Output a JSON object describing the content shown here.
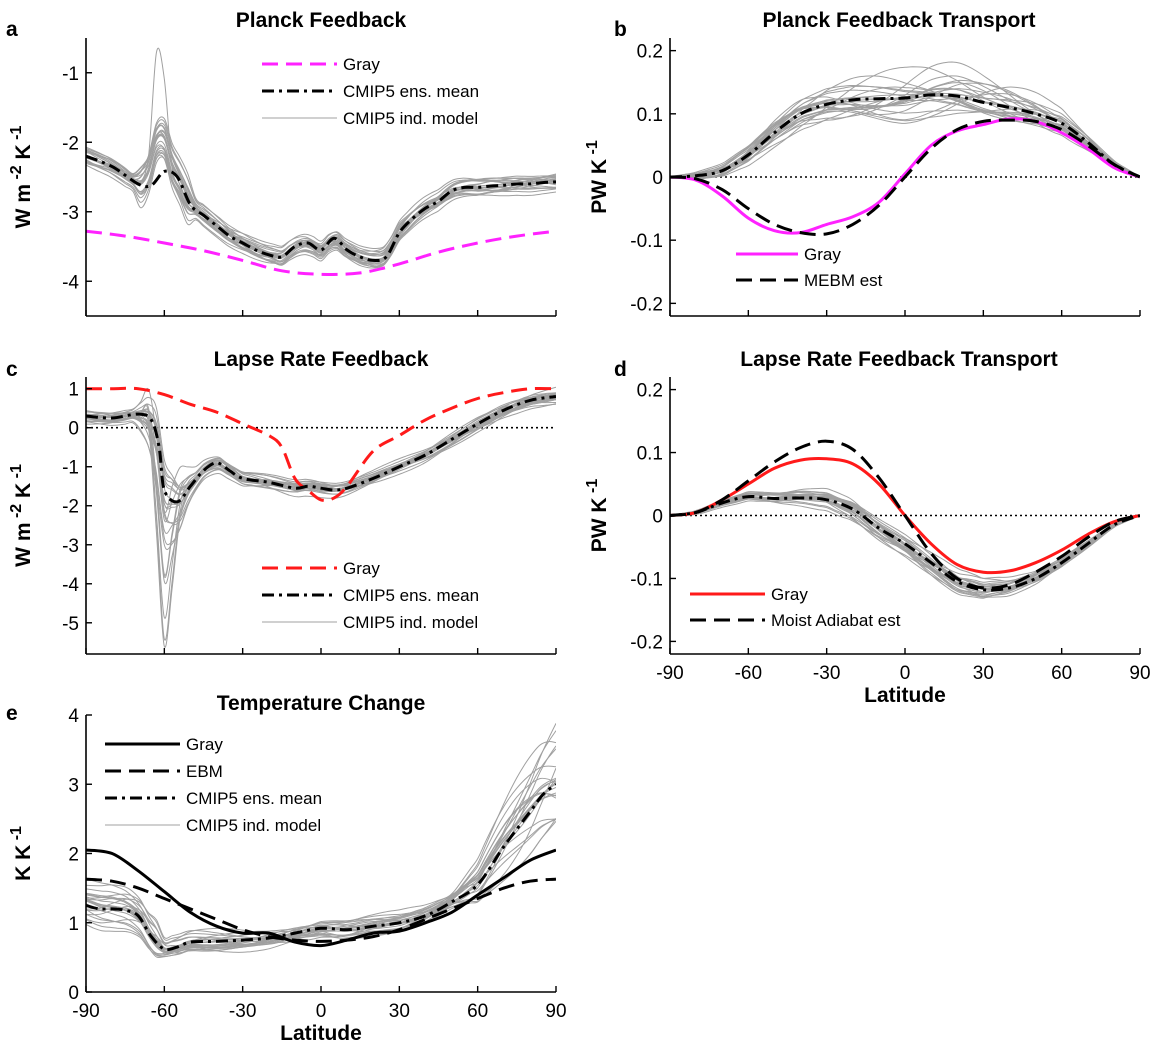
{
  "figure": {
    "x_ticks": [
      "-90",
      "-60",
      "-30",
      "0",
      "30",
      "60",
      "90"
    ],
    "x_label": "Latitude"
  },
  "chart_data": [
    {
      "panel": "a",
      "type": "line",
      "title": "Planck Feedback",
      "ylabel": "W m -2 K -1",
      "xlim": [
        -90,
        90
      ],
      "ylim": [
        -4.5,
        -0.5
      ],
      "yticks": [
        -4,
        -3,
        -2,
        -1
      ],
      "xlabel": "",
      "grid": false,
      "legend_position": "top-right",
      "legend": [
        "Gray",
        "CMIP5 ens. mean",
        "CMIP5 ind. model"
      ],
      "series": [
        {
          "name": "Gray",
          "color": "#ff22ff",
          "style": "dashed",
          "x": [
            -90,
            -75,
            -60,
            -45,
            -30,
            -15,
            0,
            15,
            30,
            45,
            60,
            75,
            90
          ],
          "y": [
            -3.28,
            -3.35,
            -3.45,
            -3.56,
            -3.7,
            -3.85,
            -3.9,
            -3.88,
            -3.75,
            -3.58,
            -3.45,
            -3.35,
            -3.28
          ]
        },
        {
          "name": "CMIP5 ens. mean",
          "color": "#000000",
          "style": "dashdot",
          "x": [
            -90,
            -80,
            -70,
            -65,
            -60,
            -55,
            -50,
            -45,
            -40,
            -35,
            -30,
            -25,
            -20,
            -15,
            -10,
            -5,
            0,
            5,
            10,
            15,
            20,
            25,
            30,
            35,
            40,
            45,
            50,
            55,
            60,
            65,
            70,
            75,
            80,
            85,
            90
          ],
          "y": [
            -2.2,
            -2.35,
            -2.6,
            -2.62,
            -2.42,
            -2.5,
            -2.9,
            -3.05,
            -3.2,
            -3.35,
            -3.45,
            -3.55,
            -3.62,
            -3.65,
            -3.5,
            -3.45,
            -3.55,
            -3.38,
            -3.55,
            -3.65,
            -3.7,
            -3.65,
            -3.3,
            -3.1,
            -2.95,
            -2.85,
            -2.7,
            -2.65,
            -2.65,
            -2.63,
            -2.62,
            -2.6,
            -2.6,
            -2.58,
            -2.57
          ]
        }
      ]
    },
    {
      "panel": "b",
      "type": "line",
      "title": "Planck Feedback Transport",
      "ylabel": "PW K -1",
      "xlim": [
        -90,
        90
      ],
      "ylim": [
        -0.22,
        0.22
      ],
      "yticks": [
        -0.2,
        -0.1,
        0,
        0.1,
        0.2
      ],
      "xlabel": "",
      "grid": false,
      "legend_position": "bottom-right",
      "legend": [
        "Gray",
        "MEBM est"
      ],
      "series": [
        {
          "name": "Gray",
          "color": "#ff22ff",
          "style": "solid",
          "x": [
            -90,
            -80,
            -70,
            -60,
            -50,
            -40,
            -30,
            -20,
            -10,
            0,
            10,
            20,
            30,
            40,
            50,
            60,
            70,
            80,
            90
          ],
          "y": [
            0,
            -0.005,
            -0.03,
            -0.065,
            -0.085,
            -0.088,
            -0.075,
            -0.063,
            -0.04,
            0.005,
            0.05,
            0.073,
            0.083,
            0.092,
            0.088,
            0.07,
            0.045,
            0.015,
            0
          ]
        },
        {
          "name": "MEBM est",
          "color": "#000000",
          "style": "dashed",
          "x": [
            -90,
            -80,
            -70,
            -60,
            -50,
            -40,
            -30,
            -20,
            -10,
            0,
            10,
            20,
            30,
            40,
            50,
            60,
            70,
            80,
            90
          ],
          "y": [
            0,
            -0.003,
            -0.02,
            -0.05,
            -0.075,
            -0.088,
            -0.09,
            -0.075,
            -0.045,
            0.0,
            0.045,
            0.075,
            0.088,
            0.09,
            0.088,
            0.075,
            0.05,
            0.02,
            0
          ]
        },
        {
          "name": "CMIP5 ens. mean",
          "color": "#000000",
          "style": "dashdot",
          "x": [
            -90,
            -80,
            -70,
            -60,
            -50,
            -40,
            -30,
            -20,
            -10,
            0,
            10,
            20,
            30,
            40,
            50,
            60,
            70,
            80,
            90
          ],
          "y": [
            0,
            0.002,
            0.01,
            0.035,
            0.07,
            0.1,
            0.115,
            0.122,
            0.124,
            0.125,
            0.13,
            0.128,
            0.118,
            0.11,
            0.1,
            0.085,
            0.055,
            0.02,
            0
          ]
        }
      ]
    },
    {
      "panel": "c",
      "type": "line",
      "title": "Lapse Rate Feedback",
      "ylabel": "W m -2 K -1",
      "xlim": [
        -90,
        90
      ],
      "ylim": [
        -5.8,
        1.3
      ],
      "yticks": [
        -5,
        -4,
        -3,
        -2,
        -1,
        0,
        1
      ],
      "xlabel": "",
      "grid": false,
      "legend_position": "bottom-right",
      "legend": [
        "Gray",
        "CMIP5 ens. mean",
        "CMIP5 ind. model"
      ],
      "series": [
        {
          "name": "Gray",
          "color": "#ff1a1a",
          "style": "dashed",
          "x": [
            -90,
            -80,
            -70,
            -60,
            -50,
            -40,
            -30,
            -20,
            -15,
            -10,
            -5,
            0,
            5,
            10,
            20,
            30,
            40,
            50,
            60,
            70,
            80,
            90
          ],
          "y": [
            1,
            1,
            1,
            0.85,
            0.6,
            0.4,
            0.1,
            -0.2,
            -0.5,
            -1.3,
            -1.6,
            -1.85,
            -1.8,
            -1.5,
            -0.6,
            -0.2,
            0.2,
            0.5,
            0.75,
            0.9,
            1,
            1
          ]
        },
        {
          "name": "CMIP5 ens. mean",
          "color": "#000000",
          "style": "dashdot",
          "x": [
            -90,
            -80,
            -70,
            -65,
            -62,
            -60,
            -55,
            -50,
            -45,
            -40,
            -35,
            -30,
            -20,
            -10,
            -5,
            0,
            5,
            10,
            20,
            30,
            40,
            50,
            60,
            70,
            80,
            90
          ],
          "y": [
            0.3,
            0.25,
            0.35,
            0.2,
            -0.5,
            -1.6,
            -1.9,
            -1.5,
            -1.1,
            -0.9,
            -1.1,
            -1.3,
            -1.4,
            -1.55,
            -1.5,
            -1.55,
            -1.6,
            -1.55,
            -1.3,
            -1.0,
            -0.7,
            -0.3,
            0.1,
            0.45,
            0.7,
            0.8
          ]
        }
      ]
    },
    {
      "panel": "d",
      "type": "line",
      "title": "Lapse Rate Feedback Transport",
      "ylabel": "PW K -1",
      "xlim": [
        -90,
        90
      ],
      "ylim": [
        -0.22,
        0.22
      ],
      "yticks": [
        -0.2,
        -0.1,
        0,
        0.1,
        0.2
      ],
      "xlabel": "Latitude",
      "grid": false,
      "legend_position": "bottom-left",
      "legend": [
        "Gray",
        "Moist Adiabat est"
      ],
      "series": [
        {
          "name": "Gray",
          "color": "#ff1a1a",
          "style": "solid",
          "x": [
            -90,
            -80,
            -70,
            -60,
            -50,
            -40,
            -30,
            -20,
            -10,
            0,
            10,
            20,
            30,
            40,
            50,
            60,
            70,
            80,
            90
          ],
          "y": [
            0,
            0.005,
            0.025,
            0.05,
            0.075,
            0.088,
            0.09,
            0.082,
            0.05,
            0,
            -0.045,
            -0.078,
            -0.09,
            -0.088,
            -0.075,
            -0.055,
            -0.03,
            -0.01,
            0
          ]
        },
        {
          "name": "Moist Adiabat est",
          "color": "#000000",
          "style": "dashed",
          "x": [
            -90,
            -80,
            -70,
            -60,
            -50,
            -40,
            -30,
            -20,
            -10,
            0,
            10,
            20,
            30,
            40,
            50,
            60,
            70,
            80,
            90
          ],
          "y": [
            0,
            0.005,
            0.025,
            0.055,
            0.085,
            0.108,
            0.118,
            0.105,
            0.06,
            0,
            -0.06,
            -0.1,
            -0.115,
            -0.11,
            -0.09,
            -0.065,
            -0.035,
            -0.01,
            0
          ]
        },
        {
          "name": "CMIP5 ens. mean",
          "color": "#000000",
          "style": "dashdot",
          "x": [
            -90,
            -80,
            -70,
            -60,
            -50,
            -40,
            -30,
            -20,
            -10,
            0,
            10,
            20,
            30,
            40,
            50,
            60,
            70,
            80,
            90
          ],
          "y": [
            0,
            0.005,
            0.02,
            0.03,
            0.027,
            0.028,
            0.025,
            0.01,
            -0.02,
            -0.045,
            -0.075,
            -0.105,
            -0.118,
            -0.115,
            -0.1,
            -0.075,
            -0.045,
            -0.015,
            0
          ]
        }
      ]
    },
    {
      "panel": "e",
      "type": "line",
      "title": "Temperature Change",
      "ylabel": "K K -1",
      "xlim": [
        -90,
        90
      ],
      "ylim": [
        0,
        4
      ],
      "yticks": [
        0,
        1,
        2,
        3,
        4
      ],
      "xlabel": "Latitude",
      "grid": false,
      "legend_position": "top-left",
      "legend": [
        "Gray",
        "EBM",
        "CMIP5 ens. mean",
        "CMIP5 ind. model"
      ],
      "series": [
        {
          "name": "Gray",
          "color": "#000000",
          "style": "solid",
          "x": [
            -90,
            -80,
            -70,
            -60,
            -50,
            -40,
            -30,
            -20,
            -10,
            0,
            10,
            20,
            30,
            40,
            50,
            60,
            70,
            80,
            90
          ],
          "y": [
            2.05,
            2.0,
            1.75,
            1.45,
            1.15,
            0.95,
            0.85,
            0.85,
            0.72,
            0.67,
            0.75,
            0.85,
            0.88,
            1.0,
            1.15,
            1.4,
            1.65,
            1.9,
            2.05
          ]
        },
        {
          "name": "EBM",
          "color": "#000000",
          "style": "dashed",
          "x": [
            -90,
            -80,
            -70,
            -60,
            -50,
            -40,
            -30,
            -20,
            -10,
            0,
            10,
            20,
            30,
            40,
            50,
            60,
            70,
            80,
            90
          ],
          "y": [
            1.63,
            1.6,
            1.5,
            1.35,
            1.2,
            1.05,
            0.9,
            0.8,
            0.75,
            0.73,
            0.75,
            0.8,
            0.9,
            1.05,
            1.2,
            1.35,
            1.5,
            1.6,
            1.63
          ]
        },
        {
          "name": "CMIP5 ens. mean",
          "color": "#000000",
          "style": "dashdot",
          "x": [
            -90,
            -85,
            -80,
            -75,
            -70,
            -65,
            -60,
            -55,
            -50,
            -40,
            -30,
            -20,
            -10,
            0,
            10,
            20,
            30,
            40,
            50,
            60,
            70,
            80,
            85,
            90
          ],
          "y": [
            1.25,
            1.2,
            1.2,
            1.18,
            1.1,
            0.8,
            0.62,
            0.65,
            0.72,
            0.73,
            0.75,
            0.78,
            0.85,
            0.92,
            0.9,
            0.95,
            1.0,
            1.1,
            1.3,
            1.55,
            2.1,
            2.6,
            2.85,
            3.0
          ]
        }
      ]
    }
  ]
}
